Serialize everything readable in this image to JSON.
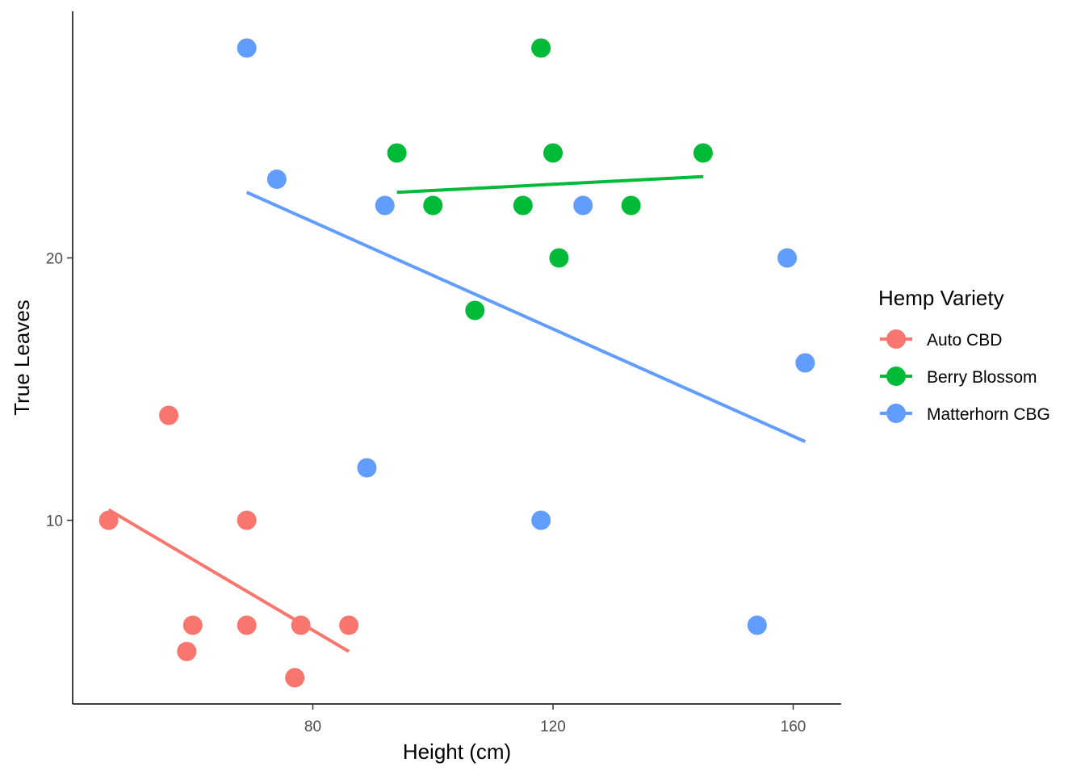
{
  "chart_data": {
    "type": "scatter",
    "xlabel": "Height (cm)",
    "ylabel": "True Leaves",
    "xlim": [
      40,
      168
    ],
    "ylim": [
      3,
      29.4
    ],
    "x_ticks": [
      80,
      120,
      160
    ],
    "y_ticks": [
      10,
      20
    ],
    "grid": false,
    "legend": {
      "title": "Hemp Variety",
      "position": "right"
    },
    "series": [
      {
        "name": "Auto CBD",
        "color": "#F8766D",
        "points": [
          {
            "x": 46,
            "y": 10
          },
          {
            "x": 56,
            "y": 14
          },
          {
            "x": 59,
            "y": 5
          },
          {
            "x": 60,
            "y": 6
          },
          {
            "x": 69,
            "y": 10
          },
          {
            "x": 69,
            "y": 6
          },
          {
            "x": 77,
            "y": 4
          },
          {
            "x": 78,
            "y": 6
          },
          {
            "x": 86,
            "y": 6
          }
        ],
        "trend": {
          "x1": 46,
          "y1": 10.4,
          "x2": 86,
          "y2": 5
        }
      },
      {
        "name": "Berry Blossom",
        "color": "#00BA38",
        "points": [
          {
            "x": 94,
            "y": 24
          },
          {
            "x": 100,
            "y": 22
          },
          {
            "x": 107,
            "y": 18
          },
          {
            "x": 115,
            "y": 22
          },
          {
            "x": 118,
            "y": 28
          },
          {
            "x": 120,
            "y": 24
          },
          {
            "x": 121,
            "y": 20
          },
          {
            "x": 133,
            "y": 22
          },
          {
            "x": 145,
            "y": 24
          }
        ],
        "trend": {
          "x1": 94,
          "y1": 22.5,
          "x2": 145,
          "y2": 23.1
        }
      },
      {
        "name": "Matterhorn CBG",
        "color": "#619CFF",
        "points": [
          {
            "x": 69,
            "y": 28
          },
          {
            "x": 74,
            "y": 23
          },
          {
            "x": 89,
            "y": 12
          },
          {
            "x": 92,
            "y": 22
          },
          {
            "x": 118,
            "y": 10
          },
          {
            "x": 125,
            "y": 22
          },
          {
            "x": 154,
            "y": 6
          },
          {
            "x": 159,
            "y": 20
          },
          {
            "x": 162,
            "y": 16
          }
        ],
        "trend": {
          "x1": 69,
          "y1": 22.5,
          "x2": 162,
          "y2": 13
        }
      }
    ]
  }
}
